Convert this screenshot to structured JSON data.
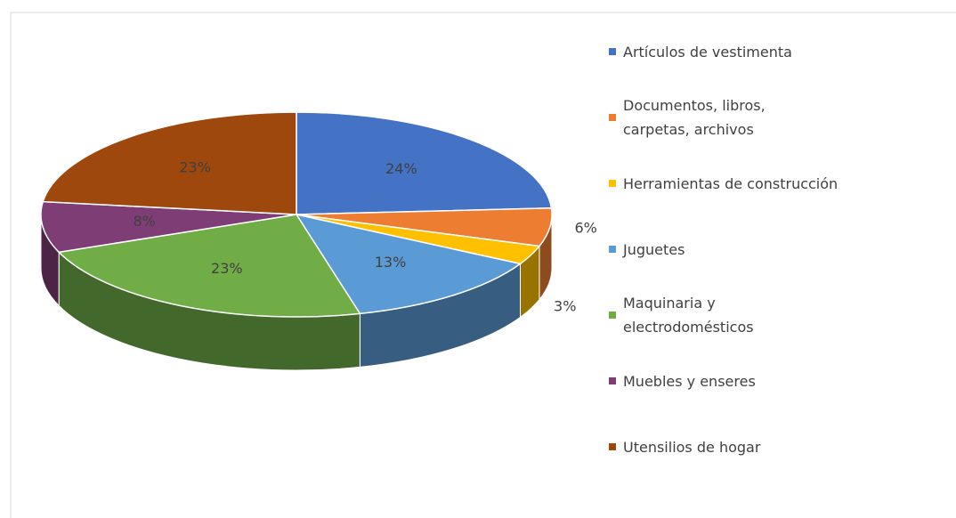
{
  "chart_data": {
    "type": "pie",
    "categories": [
      "Artículos de vestimenta",
      "Documentos, libros,\ncarpetas, archivos",
      "Herramientas de construcción",
      "Juguetes",
      "Maquinaria y\nelectrodomésticos",
      "Muebles y enseres",
      "Utensilios de hogar"
    ],
    "values": [
      24,
      6,
      3,
      13,
      23,
      8,
      23
    ],
    "value_labels": [
      "24%",
      "6%",
      "3%",
      "13%",
      "23%",
      "8%",
      "23%"
    ],
    "colors": [
      "#4472c4",
      "#ed7d31",
      "#ffc000",
      "#5b9bd5",
      "#70ad47",
      "#7e3e75",
      "#9e480e"
    ],
    "legend": "right"
  }
}
